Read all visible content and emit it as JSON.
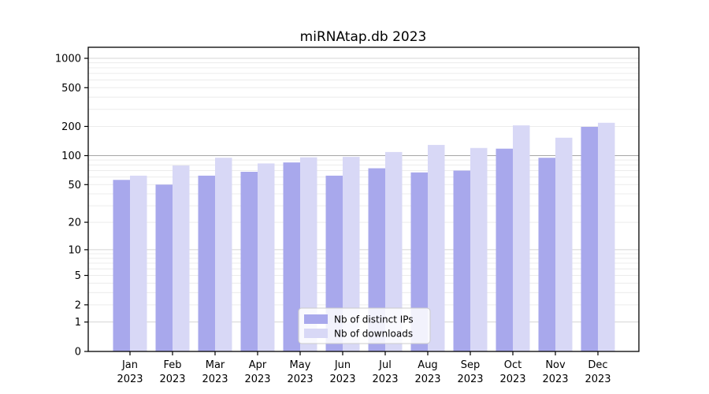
{
  "chart_data": {
    "type": "bar",
    "title": "miRNAtap.db 2023",
    "categories": [
      "Jan",
      "Feb",
      "Mar",
      "Apr",
      "May",
      "Jun",
      "Jul",
      "Aug",
      "Sep",
      "Oct",
      "Nov",
      "Dec"
    ],
    "year": "2023",
    "series": [
      {
        "name": "Nb of distinct IPs",
        "color": "#a8a8ec",
        "values": [
          56,
          50,
          62,
          68,
          85,
          62,
          74,
          67,
          70,
          118,
          95,
          198
        ]
      },
      {
        "name": "Nb of downloads",
        "color": "#d8d8f6",
        "values": [
          62,
          79,
          95,
          83,
          96,
          97,
          109,
          129,
          120,
          205,
          153,
          218
        ]
      }
    ],
    "yscale": "log1p",
    "yticks": [
      0,
      1,
      2,
      5,
      10,
      20,
      50,
      100,
      200,
      500,
      1000
    ],
    "ylim": [
      0,
      1300
    ],
    "xlabel": "",
    "ylabel": "",
    "grid": true,
    "legend_position": "bottom-center",
    "colors": {
      "axis": "#000000",
      "grid_minor": "#ececec",
      "grid_major": "#d4d4d4",
      "grid_hundred": "#a6a6a6",
      "background": "#ffffff",
      "legend_background": "#ffffff",
      "legend_border": "#cccccc"
    }
  }
}
